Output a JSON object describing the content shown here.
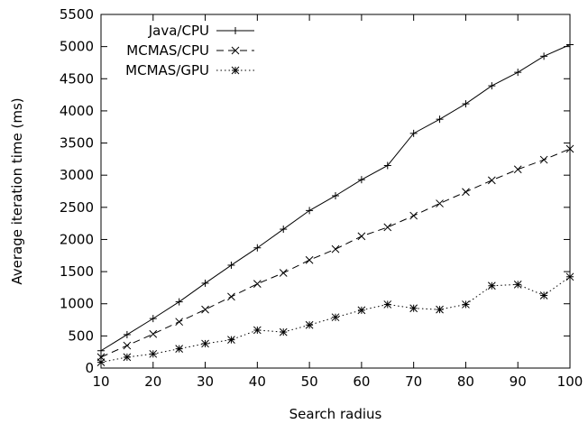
{
  "chart_data": {
    "type": "line",
    "title": "",
    "xlabel": "Search radius",
    "ylabel": "Average iteration time (ms)",
    "xlim": [
      10,
      100
    ],
    "ylim": [
      0,
      5500
    ],
    "xticks": [
      10,
      20,
      30,
      40,
      50,
      60,
      70,
      80,
      90,
      100
    ],
    "yticks": [
      0,
      500,
      1000,
      1500,
      2000,
      2500,
      3000,
      3500,
      4000,
      4500,
      5000,
      5500
    ],
    "grid": false,
    "legend_position": "top-left",
    "x": [
      10,
      15,
      20,
      25,
      30,
      35,
      40,
      45,
      50,
      55,
      60,
      65,
      70,
      75,
      80,
      85,
      90,
      95,
      100
    ],
    "series": [
      {
        "name": "Java/CPU",
        "marker": "plus",
        "dash": "solid",
        "color": "#000000",
        "values": [
          270,
          520,
          770,
          1030,
          1320,
          1600,
          1870,
          2160,
          2450,
          2680,
          2930,
          3150,
          3650,
          3870,
          4110,
          4390,
          4600,
          4850,
          5030
        ]
      },
      {
        "name": "MCMAS/CPU",
        "marker": "cross",
        "dash": "dashed",
        "color": "#000000",
        "values": [
          170,
          350,
          530,
          720,
          910,
          1110,
          1310,
          1480,
          1680,
          1850,
          2050,
          2190,
          2370,
          2560,
          2740,
          2920,
          3090,
          3240,
          3410
        ]
      },
      {
        "name": "MCMAS/GPU",
        "marker": "star",
        "dash": "dotted",
        "color": "#000000",
        "values": [
          90,
          170,
          220,
          300,
          380,
          440,
          590,
          560,
          670,
          790,
          900,
          990,
          930,
          910,
          990,
          1280,
          1300,
          1130,
          1420
        ]
      }
    ]
  }
}
